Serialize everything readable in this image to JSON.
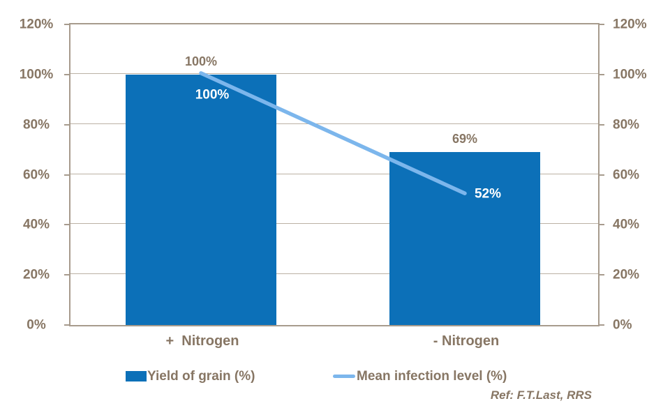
{
  "chart_data": {
    "type": "bar",
    "subtype": "combo-bar-line",
    "categories": [
      "+  Nitrogen",
      "- Nitrogen"
    ],
    "series": [
      {
        "name": "Yield of grain (%)",
        "type": "bar",
        "values": [
          100,
          69
        ],
        "data_labels": [
          "100%",
          "69%"
        ],
        "color": "#0C70B8"
      },
      {
        "name": "Mean infection level (%)",
        "type": "line",
        "values": [
          100,
          52
        ],
        "data_labels": [
          "100%",
          "52%"
        ],
        "color": "#7CB6EC"
      }
    ],
    "y_axis": {
      "min": 0,
      "max": 120,
      "tick_step": 20,
      "tick_labels": [
        "0%",
        "20%",
        "40%",
        "60%",
        "80%",
        "100%",
        "120%"
      ],
      "sides": [
        "left",
        "right"
      ]
    },
    "grid": true,
    "legend_position": "bottom",
    "title": ""
  },
  "annotation": {
    "ref_text": "Ref: F.T.Last, RRS"
  },
  "colors": {
    "bar_blue": "#0C70B8",
    "line_blue": "#7CB6EC",
    "text_brown": "#877664",
    "axis": "#A79B8D",
    "gridline": "#BBB1A4",
    "background": "#FFFFFF",
    "line_label_white": "#FFFFFF"
  }
}
